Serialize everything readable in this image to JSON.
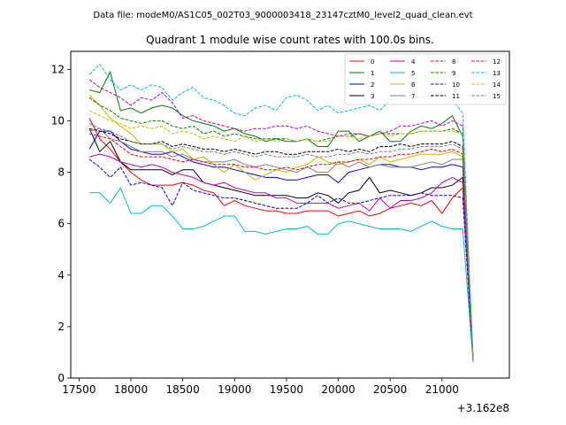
{
  "chart_data": {
    "type": "line",
    "suptitle": "Data file: modeM0/AS1C05_002T03_9000003418_23147cztM0_level2_quad_clean.evt",
    "title": "Quadrant 1 module wise count rates with 100.0s bins.",
    "xlabel": "",
    "ylabel": "",
    "x_offset_label": "+3.162e8",
    "xlim": [
      17420,
      21650
    ],
    "ylim": [
      0,
      12.7
    ],
    "x_ticks": [
      17500,
      18000,
      18500,
      19000,
      19500,
      20000,
      20500,
      21000
    ],
    "y_ticks": [
      0,
      2,
      4,
      6,
      8,
      10,
      12
    ],
    "grid": false,
    "legend_position": "top-right",
    "x": [
      17600,
      17700,
      17800,
      17900,
      18000,
      18100,
      18200,
      18300,
      18400,
      18500,
      18600,
      18700,
      18800,
      18900,
      19000,
      19100,
      19200,
      19300,
      19400,
      19500,
      19600,
      19700,
      19800,
      19900,
      20000,
      20100,
      20200,
      20300,
      20400,
      20500,
      20600,
      20700,
      20800,
      20900,
      21000,
      21100,
      21200,
      21300
    ],
    "series": [
      {
        "name": "0",
        "color": "#ff0000",
        "dash": "solid",
        "values": [
          10.1,
          9.3,
          8.9,
          8.4,
          8.0,
          7.7,
          7.5,
          7.5,
          7.5,
          7.6,
          7.5,
          7.3,
          7.2,
          6.7,
          6.9,
          6.7,
          6.6,
          6.5,
          6.5,
          6.4,
          6.4,
          6.5,
          6.5,
          6.5,
          6.3,
          6.4,
          6.5,
          6.3,
          6.4,
          6.6,
          6.7,
          6.8,
          6.7,
          6.9,
          6.4,
          7.0,
          7.4,
          0.7
        ]
      },
      {
        "name": "1",
        "color": "#008000",
        "dash": "solid",
        "values": [
          11.2,
          11.1,
          11.9,
          10.4,
          10.5,
          10.3,
          10.5,
          10.6,
          10.5,
          10.2,
          10.0,
          9.9,
          9.8,
          9.6,
          9.7,
          9.5,
          9.4,
          9.2,
          9.3,
          9.2,
          9.2,
          9.3,
          9.0,
          9.0,
          9.6,
          9.6,
          9.2,
          9.4,
          9.6,
          9.2,
          9.2,
          9.6,
          9.8,
          9.7,
          9.9,
          10.2,
          9.4,
          0.7
        ]
      },
      {
        "name": "2",
        "color": "#0000ff",
        "dash": "solid",
        "values": [
          8.9,
          9.6,
          9.6,
          9.2,
          8.9,
          8.8,
          8.7,
          8.7,
          8.8,
          8.6,
          8.4,
          8.3,
          8.2,
          8.2,
          8.1,
          8.0,
          7.9,
          7.8,
          7.8,
          7.7,
          7.7,
          7.8,
          7.9,
          7.9,
          7.6,
          8.0,
          8.1,
          8.2,
          8.3,
          8.3,
          8.2,
          8.2,
          8.1,
          8.2,
          8.2,
          8.3,
          8.2,
          0.7
        ]
      },
      {
        "name": "3",
        "color": "#000000",
        "dash": "solid",
        "values": [
          9.7,
          8.8,
          9.2,
          8.4,
          8.1,
          8.1,
          8.1,
          8.1,
          7.9,
          8.1,
          8.1,
          7.6,
          7.5,
          7.4,
          7.3,
          7.2,
          7.1,
          7.1,
          7.1,
          7.1,
          7.0,
          7.0,
          7.2,
          7.1,
          6.8,
          7.2,
          7.3,
          7.8,
          7.2,
          7.3,
          7.2,
          7.1,
          7.2,
          7.4,
          7.4,
          7.5,
          7.8,
          0.7
        ]
      },
      {
        "name": "4",
        "color": "#bf00bf",
        "dash": "solid",
        "values": [
          8.6,
          8.7,
          8.6,
          8.4,
          8.3,
          8.2,
          8.3,
          8.2,
          8.0,
          7.9,
          7.8,
          7.6,
          7.5,
          7.6,
          7.4,
          7.3,
          7.2,
          7.2,
          7.0,
          7.0,
          6.8,
          6.8,
          6.8,
          6.8,
          6.6,
          6.7,
          6.8,
          6.5,
          7.0,
          6.6,
          6.9,
          6.9,
          7.0,
          7.2,
          7.6,
          7.8,
          7.6,
          0.7
        ]
      },
      {
        "name": "5",
        "color": "#00bfbf",
        "dash": "solid",
        "values": [
          7.2,
          7.2,
          6.8,
          7.4,
          6.4,
          6.4,
          6.7,
          6.7,
          6.3,
          5.8,
          5.8,
          5.9,
          6.1,
          6.3,
          6.3,
          5.7,
          5.7,
          5.6,
          5.7,
          5.8,
          5.8,
          5.9,
          5.6,
          5.6,
          6.0,
          6.1,
          6.0,
          5.9,
          5.8,
          5.8,
          5.8,
          5.7,
          5.9,
          6.1,
          5.9,
          5.8,
          5.8,
          0.6
        ]
      },
      {
        "name": "6",
        "color": "#bfbf00",
        "dash": "solid",
        "values": [
          11.0,
          10.6,
          10.1,
          9.8,
          9.5,
          9.1,
          9.1,
          9.1,
          8.8,
          8.9,
          8.5,
          8.6,
          8.3,
          8.0,
          8.3,
          8.0,
          7.7,
          7.9,
          8.1,
          8.0,
          8.2,
          8.3,
          8.6,
          8.4,
          8.3,
          8.4,
          8.5,
          8.3,
          8.6,
          8.4,
          8.5,
          8.6,
          8.7,
          8.7,
          8.7,
          8.8,
          8.6,
          0.7
        ]
      },
      {
        "name": "7",
        "color": "#808080",
        "dash": "solid",
        "values": [
          9.6,
          9.7,
          9.3,
          9.2,
          9.0,
          8.8,
          8.8,
          8.8,
          8.6,
          8.7,
          8.5,
          8.4,
          8.4,
          8.4,
          8.5,
          8.3,
          8.2,
          8.3,
          8.2,
          8.1,
          8.0,
          8.2,
          8.0,
          8.0,
          8.4,
          8.2,
          8.4,
          8.2,
          8.3,
          8.2,
          8.2,
          8.2,
          8.3,
          8.4,
          8.3,
          8.5,
          8.5,
          0.7
        ]
      },
      {
        "name": "8",
        "color": "#ff0000",
        "dash": "dashed",
        "values": [
          9.5,
          9.4,
          9.3,
          9.0,
          8.7,
          8.6,
          8.6,
          8.6,
          8.5,
          8.4,
          8.5,
          8.4,
          8.3,
          8.3,
          8.3,
          8.2,
          8.2,
          8.1,
          8.1,
          8.2,
          8.1,
          8.2,
          8.3,
          8.3,
          8.4,
          8.4,
          8.5,
          8.5,
          8.6,
          8.6,
          8.7,
          8.7,
          8.8,
          8.9,
          8.8,
          8.9,
          8.7,
          0.7
        ]
      },
      {
        "name": "9",
        "color": "#008000",
        "dash": "dashed",
        "values": [
          10.9,
          10.6,
          10.4,
          10.1,
          10.0,
          9.9,
          10.0,
          10.0,
          9.8,
          9.7,
          9.8,
          9.5,
          9.6,
          9.4,
          9.5,
          9.4,
          9.3,
          9.3,
          9.3,
          9.3,
          9.2,
          9.3,
          9.2,
          9.3,
          9.4,
          9.4,
          9.5,
          9.4,
          9.5,
          9.5,
          9.5,
          9.5,
          9.6,
          9.6,
          9.6,
          9.7,
          9.5,
          0.7
        ]
      },
      {
        "name": "10",
        "color": "#0000ff",
        "dash": "dashed",
        "values": [
          8.5,
          8.2,
          7.8,
          8.2,
          7.5,
          7.6,
          7.5,
          7.4,
          6.7,
          7.6,
          7.3,
          7.2,
          7.1,
          7.0,
          7.0,
          6.9,
          6.8,
          6.7,
          6.6,
          6.6,
          6.6,
          6.8,
          7.1,
          6.8,
          7.0,
          6.8,
          6.8,
          6.9,
          7.0,
          7.1,
          7.1,
          7.1,
          7.2,
          7.1,
          7.1,
          7.1,
          7.0,
          0.7
        ]
      },
      {
        "name": "11",
        "color": "#000000",
        "dash": "dashed",
        "values": [
          9.7,
          9.6,
          9.5,
          9.3,
          9.2,
          9.1,
          9.1,
          9.2,
          9.0,
          9.1,
          9.0,
          8.9,
          8.9,
          8.8,
          8.9,
          8.8,
          8.7,
          8.8,
          8.8,
          8.7,
          8.7,
          8.8,
          8.8,
          8.8,
          8.9,
          8.8,
          8.9,
          8.8,
          9.0,
          9.0,
          9.1,
          9.0,
          9.1,
          9.1,
          9.1,
          9.2,
          9.0,
          0.7
        ]
      },
      {
        "name": "12",
        "color": "#bf00bf",
        "dash": "dashed",
        "values": [
          11.6,
          11.3,
          11.1,
          10.9,
          10.6,
          10.9,
          10.8,
          11.1,
          10.7,
          10.1,
          10.2,
          10.0,
          9.9,
          9.8,
          9.7,
          9.6,
          9.7,
          9.7,
          9.8,
          9.8,
          9.7,
          9.8,
          9.6,
          9.5,
          9.4,
          9.5,
          9.5,
          9.4,
          9.5,
          9.6,
          9.8,
          9.8,
          9.9,
          10.0,
          9.8,
          10.0,
          9.8,
          0.7
        ]
      },
      {
        "name": "13",
        "color": "#00bfbf",
        "dash": "dashed",
        "values": [
          11.8,
          12.2,
          11.6,
          11.2,
          11.4,
          11.2,
          11.4,
          11.3,
          10.8,
          11.1,
          11.3,
          10.9,
          10.8,
          10.6,
          10.3,
          10.2,
          10.5,
          10.6,
          10.4,
          10.9,
          11.0,
          10.8,
          10.4,
          10.6,
          10.3,
          10.4,
          10.5,
          10.6,
          10.4,
          10.8,
          10.9,
          11.0,
          10.9,
          11.0,
          11.1,
          10.8,
          10.3,
          0.7
        ]
      },
      {
        "name": "14",
        "color": "#bfbf00",
        "dash": "dashed",
        "values": [
          10.4,
          10.2,
          10.0,
          9.9,
          9.7,
          9.8,
          9.7,
          9.8,
          9.5,
          9.6,
          9.5,
          9.3,
          9.4,
          9.3,
          9.2,
          9.4,
          9.2,
          9.3,
          9.2,
          9.3,
          9.2,
          9.3,
          9.2,
          9.2,
          9.4,
          9.4,
          9.3,
          9.4,
          9.5,
          9.4,
          9.5,
          9.5,
          9.6,
          9.6,
          9.6,
          9.6,
          9.5,
          0.7
        ]
      },
      {
        "name": "15",
        "color": "#808080",
        "dash": "dashed",
        "values": [
          9.9,
          9.7,
          9.6,
          9.4,
          9.2,
          9.1,
          9.1,
          9.1,
          8.9,
          9.0,
          8.9,
          8.8,
          8.8,
          8.7,
          8.8,
          8.7,
          8.6,
          8.7,
          8.6,
          8.6,
          8.6,
          8.7,
          8.6,
          8.6,
          8.7,
          8.7,
          8.8,
          8.7,
          8.8,
          8.8,
          8.9,
          8.9,
          9.0,
          9.0,
          9.0,
          9.1,
          8.9,
          0.7
        ]
      }
    ]
  }
}
